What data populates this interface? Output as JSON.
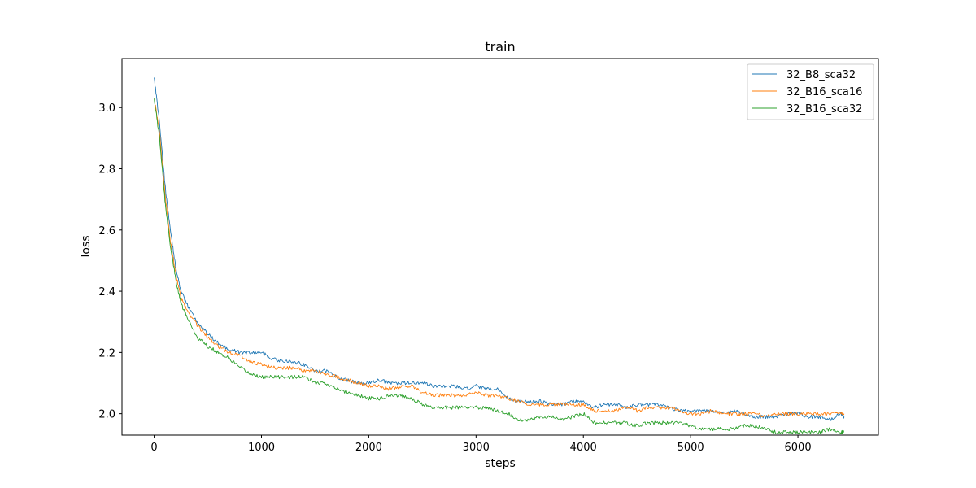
{
  "chart_data": {
    "type": "line",
    "title": "train",
    "xlabel": "steps",
    "ylabel": "loss",
    "xlim": [
      -300,
      6750
    ],
    "ylim": [
      1.93,
      3.16
    ],
    "xticks": [
      0,
      1000,
      2000,
      3000,
      4000,
      5000,
      6000
    ],
    "yticks": [
      2.0,
      2.2,
      2.4,
      2.6,
      2.8,
      3.0
    ],
    "grid": false,
    "legend_position": "top-right",
    "series": [
      {
        "name": "32_B8_sca32",
        "color": "#1f77b4",
        "x": [
          0,
          50,
          100,
          150,
          200,
          250,
          300,
          400,
          500,
          600,
          700,
          800,
          900,
          1000,
          1100,
          1200,
          1300,
          1400,
          1500,
          1600,
          1700,
          1800,
          1900,
          2000,
          2100,
          2200,
          2300,
          2400,
          2500,
          2600,
          2700,
          2800,
          2900,
          3000,
          3100,
          3200,
          3300,
          3400,
          3500,
          3600,
          3700,
          3800,
          3900,
          4000,
          4100,
          4200,
          4300,
          4400,
          4500,
          4600,
          4700,
          4800,
          4900,
          5000,
          5100,
          5200,
          5300,
          5400,
          5500,
          5600,
          5700,
          5800,
          5900,
          6000,
          6100,
          6200,
          6300,
          6400,
          6430
        ],
        "y": [
          3.1,
          2.95,
          2.75,
          2.6,
          2.48,
          2.4,
          2.36,
          2.3,
          2.26,
          2.23,
          2.21,
          2.2,
          2.2,
          2.2,
          2.18,
          2.17,
          2.17,
          2.16,
          2.14,
          2.14,
          2.12,
          2.11,
          2.1,
          2.1,
          2.11,
          2.1,
          2.1,
          2.1,
          2.1,
          2.09,
          2.09,
          2.09,
          2.08,
          2.09,
          2.08,
          2.08,
          2.05,
          2.04,
          2.04,
          2.04,
          2.03,
          2.03,
          2.04,
          2.04,
          2.02,
          2.03,
          2.03,
          2.02,
          2.03,
          2.03,
          2.03,
          2.02,
          2.01,
          2.01,
          2.01,
          2.01,
          2.0,
          2.01,
          2.0,
          1.99,
          1.99,
          1.99,
          2.0,
          2.0,
          1.99,
          1.99,
          1.98,
          2.0,
          1.99
        ]
      },
      {
        "name": "32_B16_sca16",
        "color": "#ff7f0e",
        "x": [
          0,
          50,
          100,
          150,
          200,
          250,
          300,
          400,
          500,
          600,
          700,
          800,
          900,
          1000,
          1100,
          1200,
          1300,
          1400,
          1500,
          1600,
          1700,
          1800,
          1900,
          2000,
          2100,
          2200,
          2300,
          2400,
          2500,
          2600,
          2700,
          2800,
          2900,
          3000,
          3100,
          3200,
          3300,
          3400,
          3500,
          3600,
          3700,
          3800,
          3900,
          4000,
          4100,
          4200,
          4300,
          4400,
          4500,
          4600,
          4700,
          4800,
          4900,
          5000,
          5100,
          5200,
          5300,
          5400,
          5500,
          5600,
          5700,
          5800,
          5900,
          6000,
          6100,
          6200,
          6300,
          6400,
          6430
        ],
        "y": [
          3.03,
          2.92,
          2.72,
          2.57,
          2.46,
          2.38,
          2.34,
          2.29,
          2.25,
          2.22,
          2.2,
          2.19,
          2.17,
          2.16,
          2.15,
          2.15,
          2.15,
          2.14,
          2.14,
          2.13,
          2.12,
          2.11,
          2.1,
          2.09,
          2.09,
          2.08,
          2.09,
          2.09,
          2.07,
          2.06,
          2.06,
          2.06,
          2.06,
          2.07,
          2.06,
          2.06,
          2.05,
          2.04,
          2.03,
          2.03,
          2.03,
          2.03,
          2.03,
          2.03,
          2.01,
          2.01,
          2.01,
          2.02,
          2.01,
          2.02,
          2.02,
          2.02,
          2.01,
          2.0,
          2.0,
          2.01,
          2.0,
          2.0,
          2.0,
          2.0,
          1.99,
          2.0,
          2.0,
          2.0,
          2.0,
          2.0,
          2.0,
          2.0,
          2.0
        ]
      },
      {
        "name": "32_B16_sca32",
        "color": "#2ca02c",
        "x": [
          0,
          50,
          100,
          150,
          200,
          250,
          300,
          400,
          500,
          600,
          700,
          800,
          900,
          1000,
          1100,
          1200,
          1300,
          1400,
          1500,
          1600,
          1700,
          1800,
          1900,
          2000,
          2100,
          2200,
          2300,
          2400,
          2500,
          2600,
          2700,
          2800,
          2900,
          3000,
          3100,
          3200,
          3300,
          3400,
          3500,
          3600,
          3700,
          3800,
          3900,
          4000,
          4100,
          4200,
          4300,
          4400,
          4500,
          4600,
          4700,
          4800,
          4900,
          5000,
          5100,
          5200,
          5300,
          5400,
          5500,
          5600,
          5700,
          5800,
          5900,
          6000,
          6100,
          6200,
          6300,
          6400,
          6430
        ],
        "y": [
          3.03,
          2.9,
          2.7,
          2.55,
          2.44,
          2.36,
          2.32,
          2.25,
          2.22,
          2.2,
          2.18,
          2.15,
          2.13,
          2.12,
          2.12,
          2.12,
          2.12,
          2.12,
          2.1,
          2.1,
          2.08,
          2.07,
          2.06,
          2.05,
          2.05,
          2.06,
          2.06,
          2.05,
          2.03,
          2.02,
          2.02,
          2.02,
          2.02,
          2.02,
          2.02,
          2.01,
          2.0,
          1.98,
          1.98,
          1.99,
          1.99,
          1.98,
          1.99,
          2.0,
          1.97,
          1.97,
          1.97,
          1.97,
          1.96,
          1.97,
          1.97,
          1.97,
          1.97,
          1.96,
          1.95,
          1.95,
          1.95,
          1.95,
          1.96,
          1.96,
          1.95,
          1.94,
          1.94,
          1.94,
          1.94,
          1.94,
          1.95,
          1.94,
          1.94
        ]
      }
    ]
  }
}
